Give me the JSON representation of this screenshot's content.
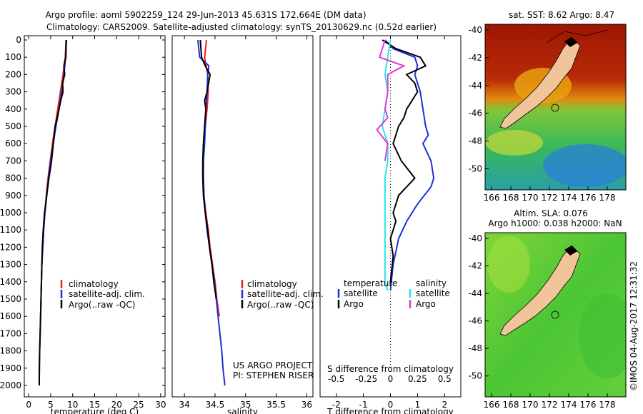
{
  "header": {
    "line1": "Argo profile: aoml 5902259_124 29-Jun-2013 45.631S 172.664E (DM data)",
    "line2": "Climatology: CARS2009. Satellite-adjusted climatology: synTS_20130629.nc (0.52d earlier)"
  },
  "colors": {
    "climatology": "#e8221f",
    "satellite": "#1b2fd8",
    "argo": "#000000",
    "cyan": "#2ee6e6",
    "magenta": "#e03ad8",
    "land": "#f2c49a",
    "sst_warm": "#a31a05",
    "sla_green": "#5bd13a"
  },
  "footer_texts": {
    "project": "US ARGO PROJECT",
    "pi": "PI: STEPHEN RISER",
    "stamp": "©IMOS 04-Aug-2017 12:31:32"
  },
  "legends": {
    "temperature": [
      "climatology",
      "satellite-adj. clim.",
      "Argo(..raw -QC)"
    ],
    "salinity": [
      "climatology",
      "satellite-adj. clim.",
      "Argo(..raw -QC)"
    ],
    "difference": {
      "temperature_head": "temperature",
      "salinity_head": "salinity",
      "satellite": "satellite",
      "argo": "Argo"
    }
  },
  "maps": {
    "sst_title": "sat. SST: 8.62 Argo: 8.47",
    "sla_title1": "Altim. SLA: 0.076",
    "sla_title2": "Argo h1000: 0.038 h2000: NaN",
    "lat_ticks": [
      "-40",
      "-42",
      "-44",
      "-46",
      "-48",
      "-50"
    ],
    "lon_ticks": [
      "166",
      "168",
      "170",
      "172",
      "174",
      "176",
      "178"
    ]
  },
  "chart_data": [
    {
      "type": "line",
      "title": "",
      "xlabel": "temperature (deg C)",
      "ylabel": "",
      "xlim": [
        -1,
        31
      ],
      "ylim": [
        2000,
        0
      ],
      "xticks": [
        0,
        5,
        10,
        15,
        20,
        25,
        30
      ],
      "yticks": [
        0,
        100,
        200,
        300,
        400,
        500,
        600,
        700,
        800,
        900,
        1000,
        1100,
        1200,
        1300,
        1400,
        1500,
        1600,
        1700,
        1800,
        1900,
        2000
      ],
      "series": [
        {
          "name": "climatology",
          "color": "#e8221f",
          "points": [
            [
              8.5,
              0
            ],
            [
              8.3,
              100
            ],
            [
              7.8,
              200
            ],
            [
              7.2,
              300
            ],
            [
              6.6,
              400
            ],
            [
              6.0,
              500
            ],
            [
              5.4,
              600
            ],
            [
              4.9,
              700
            ],
            [
              4.4,
              800
            ],
            [
              4.0,
              900
            ],
            [
              3.7,
              1000
            ],
            [
              3.4,
              1100
            ],
            [
              3.2,
              1200
            ],
            [
              3.0,
              1300
            ],
            [
              2.9,
              1400
            ],
            [
              2.8,
              1500
            ],
            [
              2.7,
              1600
            ]
          ]
        },
        {
          "name": "satellite-adj. clim.",
          "color": "#1b2fd8",
          "points": [
            [
              8.6,
              0
            ],
            [
              8.4,
              100
            ],
            [
              8.0,
              200
            ],
            [
              7.5,
              300
            ],
            [
              6.9,
              400
            ],
            [
              6.2,
              500
            ],
            [
              5.6,
              600
            ],
            [
              5.0,
              700
            ],
            [
              4.5,
              800
            ],
            [
              4.1,
              900
            ],
            [
              3.7,
              1000
            ],
            [
              3.4,
              1100
            ],
            [
              3.2,
              1200
            ],
            [
              3.0,
              1300
            ],
            [
              2.9,
              1400
            ],
            [
              2.8,
              1500
            ],
            [
              2.7,
              1600
            ],
            [
              2.6,
              1700
            ],
            [
              2.5,
              1800
            ],
            [
              2.4,
              1900
            ],
            [
              2.4,
              2000
            ]
          ]
        },
        {
          "name": "Argo(..raw -QC)",
          "color": "#000000",
          "points": [
            [
              8.5,
              0
            ],
            [
              8.45,
              100
            ],
            [
              8.0,
              150
            ],
            [
              8.2,
              200
            ],
            [
              7.7,
              250
            ],
            [
              7.8,
              300
            ],
            [
              7.3,
              350
            ],
            [
              6.9,
              400
            ],
            [
              6.5,
              450
            ],
            [
              6.0,
              500
            ],
            [
              5.6,
              600
            ],
            [
              5.2,
              700
            ],
            [
              4.6,
              800
            ],
            [
              4.1,
              900
            ],
            [
              3.6,
              1000
            ],
            [
              3.3,
              1100
            ],
            [
              3.1,
              1200
            ],
            [
              3.0,
              1300
            ],
            [
              2.9,
              1400
            ],
            [
              2.8,
              1500
            ],
            [
              2.7,
              1600
            ],
            [
              2.6,
              1700
            ],
            [
              2.5,
              1800
            ],
            [
              2.45,
              1900
            ],
            [
              2.4,
              2000
            ]
          ]
        }
      ]
    },
    {
      "type": "line",
      "title": "",
      "xlabel": "salinity",
      "ylabel": "",
      "xlim": [
        33.8,
        36.1
      ],
      "ylim": [
        2000,
        0
      ],
      "xticks": [
        34,
        34.5,
        35,
        35.5,
        36
      ],
      "series": [
        {
          "name": "climatology",
          "color": "#e8221f",
          "points": [
            [
              34.36,
              0
            ],
            [
              34.33,
              100
            ],
            [
              34.38,
              200
            ],
            [
              34.39,
              300
            ],
            [
              34.37,
              400
            ],
            [
              34.34,
              500
            ],
            [
              34.32,
              600
            ],
            [
              34.31,
              700
            ],
            [
              34.31,
              800
            ],
            [
              34.32,
              900
            ],
            [
              34.35,
              1000
            ],
            [
              34.39,
              1100
            ],
            [
              34.42,
              1200
            ],
            [
              34.46,
              1300
            ],
            [
              34.5,
              1400
            ],
            [
              34.53,
              1500
            ],
            [
              34.57,
              1600
            ]
          ]
        },
        {
          "name": "satellite-adj. clim.",
          "color": "#1b2fd8",
          "points": [
            [
              34.22,
              0
            ],
            [
              34.25,
              100
            ],
            [
              34.4,
              150
            ],
            [
              34.38,
              200
            ],
            [
              34.37,
              300
            ],
            [
              34.35,
              400
            ],
            [
              34.34,
              500
            ],
            [
              34.33,
              600
            ],
            [
              34.31,
              700
            ],
            [
              34.31,
              800
            ],
            [
              34.32,
              900
            ],
            [
              34.34,
              1000
            ],
            [
              34.37,
              1100
            ],
            [
              34.41,
              1200
            ],
            [
              34.45,
              1300
            ],
            [
              34.49,
              1400
            ],
            [
              34.52,
              1500
            ],
            [
              34.55,
              1600
            ],
            [
              34.58,
              1700
            ],
            [
              34.61,
              1800
            ],
            [
              34.63,
              1900
            ],
            [
              34.66,
              2000
            ]
          ]
        },
        {
          "name": "Argo(..raw -QC)",
          "color": "#000000",
          "points": [
            [
              34.26,
              0
            ],
            [
              34.28,
              100
            ],
            [
              34.34,
              150
            ],
            [
              34.42,
              200
            ],
            [
              34.37,
              300
            ],
            [
              34.33,
              350
            ],
            [
              34.35,
              400
            ],
            [
              34.33,
              500
            ],
            [
              34.31,
              600
            ],
            [
              34.3,
              700
            ],
            [
              34.3,
              800
            ],
            [
              34.31,
              900
            ],
            [
              34.34,
              1000
            ],
            [
              34.38,
              1100
            ],
            [
              34.41,
              1200
            ],
            [
              34.45,
              1300
            ],
            [
              34.48,
              1400
            ],
            [
              34.52,
              1500
            ]
          ]
        }
      ]
    },
    {
      "type": "line",
      "title": "",
      "xlabel": "T difference from climatology",
      "ylabel": "",
      "xlabel_top": "S difference from climatology",
      "xlim": [
        -2.6,
        2.6
      ],
      "ylim": [
        2000,
        0
      ],
      "xticks": [
        -2,
        -1,
        0,
        1,
        2
      ],
      "xticks_top": [
        -0.5,
        -0.25,
        0,
        0.25,
        0.5
      ],
      "series": [
        {
          "name": "temperature satellite",
          "color": "#1b2fd8",
          "points": [
            [
              -0.2,
              0
            ],
            [
              0.1,
              50
            ],
            [
              0.9,
              100
            ],
            [
              1.0,
              150
            ],
            [
              0.9,
              200
            ],
            [
              1.1,
              300
            ],
            [
              1.3,
              500
            ],
            [
              1.4,
              550
            ],
            [
              1.2,
              600
            ],
            [
              1.5,
              700
            ],
            [
              1.6,
              800
            ],
            [
              1.5,
              850
            ],
            [
              1.0,
              950
            ],
            [
              0.6,
              1050
            ],
            [
              0.3,
              1150
            ],
            [
              0.1,
              1300
            ],
            [
              0.0,
              1450
            ]
          ]
        },
        {
          "name": "temperature Argo",
          "color": "#000000",
          "points": [
            [
              -0.3,
              0
            ],
            [
              0.2,
              50
            ],
            [
              1.1,
              100
            ],
            [
              1.3,
              150
            ],
            [
              0.6,
              200
            ],
            [
              0.9,
              250
            ],
            [
              1.0,
              300
            ],
            [
              0.6,
              400
            ],
            [
              0.5,
              450
            ],
            [
              0.3,
              500
            ],
            [
              0.1,
              600
            ],
            [
              0.4,
              700
            ],
            [
              0.9,
              800
            ],
            [
              0.3,
              900
            ],
            [
              0.1,
              1000
            ],
            [
              0.2,
              1050
            ],
            [
              0.0,
              1150
            ],
            [
              0.1,
              1250
            ],
            [
              0.0,
              1400
            ]
          ]
        },
        {
          "name": "salinity satellite",
          "color": "#2ee6e6",
          "points": [
            [
              0.0,
              0
            ],
            [
              -0.1,
              100
            ],
            [
              -0.2,
              200
            ],
            [
              -0.1,
              300
            ],
            [
              -0.2,
              400
            ],
            [
              -0.3,
              500
            ],
            [
              -0.1,
              600
            ],
            [
              -0.1,
              700
            ],
            [
              -0.2,
              800
            ],
            [
              -0.2,
              900
            ],
            [
              -0.2,
              1000
            ],
            [
              -0.2,
              1100
            ],
            [
              -0.2,
              1200
            ],
            [
              -0.2,
              1300
            ],
            [
              -0.2,
              1400
            ],
            [
              -0.1,
              1450
            ]
          ]
        },
        {
          "name": "salinity Argo",
          "color": "#e03ad8",
          "points": [
            [
              -0.2,
              0
            ],
            [
              -0.4,
              100
            ],
            [
              0.5,
              150
            ],
            [
              -0.1,
              200
            ],
            [
              -0.1,
              300
            ],
            [
              -0.2,
              400
            ],
            [
              -0.1,
              450
            ],
            [
              -0.5,
              520
            ],
            [
              -0.1,
              600
            ],
            [
              -0.2,
              700
            ]
          ]
        }
      ]
    }
  ]
}
